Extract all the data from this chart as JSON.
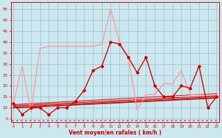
{
  "xlabel": "Vent moyen/en rafales ( km/h )",
  "bg_color": "#cce8ee",
  "grid_color": "#99bbcc",
  "axis_color": "#cc0000",
  "series_light": {
    "color": "#ff9999",
    "lw": 1.0,
    "data_x": [
      0,
      1,
      2,
      3,
      4,
      5,
      6,
      7,
      8,
      9,
      10,
      11,
      12,
      13,
      14,
      15,
      16,
      17,
      18,
      19,
      20,
      21,
      22,
      23
    ],
    "data_y": [
      12,
      29,
      8,
      37,
      38,
      38,
      38,
      38,
      38,
      38,
      39,
      55,
      40,
      33,
      9,
      16,
      16,
      21,
      21,
      27,
      16,
      16,
      16,
      16
    ]
  },
  "series_dark": {
    "color": "#cc0000",
    "lw": 1.0,
    "marker": "D",
    "ms": 2.0,
    "data_x": [
      0,
      1,
      2,
      3,
      4,
      5,
      6,
      7,
      8,
      9,
      10,
      11,
      12,
      13,
      14,
      15,
      16,
      17,
      18,
      19,
      20,
      21,
      22,
      23
    ],
    "data_y": [
      12,
      7,
      10,
      10,
      7,
      10,
      10,
      13,
      18,
      27,
      29,
      40,
      39,
      33,
      26,
      33,
      20,
      15,
      15,
      20,
      19,
      29,
      10,
      15
    ]
  },
  "trend_lines": [
    {
      "color": "#cc0000",
      "lw": 0.7,
      "x0": 0,
      "x1": 23,
      "y0": 11.5,
      "y1": 16.5
    },
    {
      "color": "#cc0000",
      "lw": 0.7,
      "x0": 0,
      "x1": 23,
      "y0": 11.0,
      "y1": 15.5
    },
    {
      "color": "#cc0000",
      "lw": 0.7,
      "x0": 0,
      "x1": 23,
      "y0": 10.5,
      "y1": 15.0
    },
    {
      "color": "#cc0000",
      "lw": 1.2,
      "x0": 0,
      "x1": 23,
      "y0": 10.0,
      "y1": 14.5
    }
  ],
  "wind_symbols_y": 4.2,
  "yticks": [
    5,
    10,
    15,
    20,
    25,
    30,
    35,
    40,
    45,
    50,
    55
  ],
  "ylim": [
    3.5,
    58
  ],
  "xlim": [
    -0.3,
    23.3
  ],
  "figsize": [
    3.2,
    2.0
  ],
  "dpi": 100
}
